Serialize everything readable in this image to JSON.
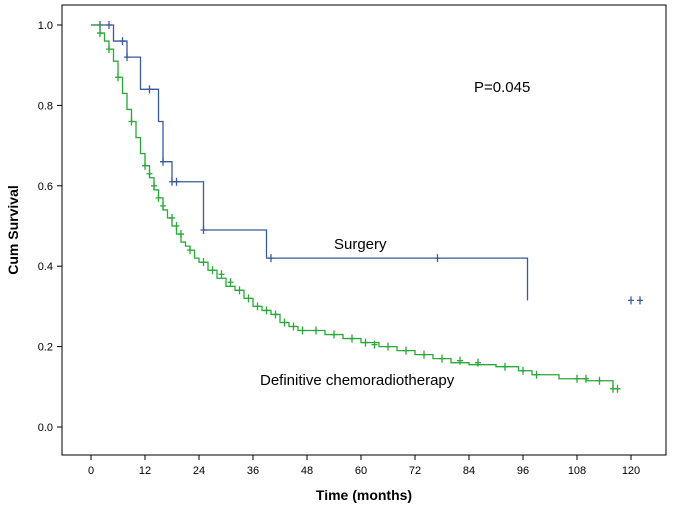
{
  "chart_data": {
    "type": "line",
    "subtype": "kaplan-meier",
    "title": "",
    "xlabel": "Time (months)",
    "ylabel": "Cum Survival",
    "xlim": [
      -2,
      124
    ],
    "ylim": [
      -0.05,
      1.05
    ],
    "xticks": [
      0,
      12,
      24,
      36,
      48,
      60,
      72,
      84,
      96,
      108,
      120
    ],
    "yticks": [
      0.0,
      0.2,
      0.4,
      0.6,
      0.8,
      1.0
    ],
    "ytick_labels": [
      "0.0",
      "0.2",
      "0.4",
      "0.6",
      "0.8",
      "1.0"
    ],
    "annotations": [
      {
        "text": "P=0.045",
        "x": 85,
        "y": 0.85
      },
      {
        "text": "Surgery",
        "x": 55,
        "y": 0.46
      },
      {
        "text": "Definitive chemoradiotherapy",
        "x": 62,
        "y": 0.115
      }
    ],
    "series": [
      {
        "name": "Surgery",
        "color": "#3a5a9a",
        "x": [
          0,
          5,
          8,
          11,
          15,
          16,
          18,
          25,
          39,
          97,
          97
        ],
        "y": [
          1.0,
          0.96,
          0.92,
          0.84,
          0.76,
          0.66,
          0.61,
          0.49,
          0.42,
          0.42,
          0.315
        ],
        "censored": [
          [
            2,
            1.0
          ],
          [
            4,
            1.0
          ],
          [
            7,
            0.96
          ],
          [
            8,
            0.92
          ],
          [
            13,
            0.84
          ],
          [
            16,
            0.66
          ],
          [
            18,
            0.61
          ],
          [
            19,
            0.61
          ],
          [
            25,
            0.49
          ],
          [
            40,
            0.42
          ],
          [
            77,
            0.42
          ],
          [
            120,
            0.315
          ],
          [
            122,
            0.315
          ]
        ]
      },
      {
        "name": "Definitive chemoradiotherapy",
        "color": "#2aa83a",
        "x": [
          0,
          2,
          3,
          4,
          5,
          6,
          7,
          8,
          9,
          10,
          11,
          12,
          13,
          14,
          15,
          16,
          17,
          18,
          19,
          20,
          21,
          22,
          23,
          24,
          26,
          28,
          30,
          32,
          34,
          36,
          38,
          40,
          42,
          44,
          46,
          48,
          52,
          56,
          60,
          64,
          68,
          72,
          76,
          80,
          84,
          90,
          95,
          98,
          104,
          110,
          116
        ],
        "y": [
          1.0,
          0.98,
          0.96,
          0.94,
          0.91,
          0.87,
          0.83,
          0.79,
          0.76,
          0.72,
          0.68,
          0.65,
          0.62,
          0.59,
          0.57,
          0.54,
          0.52,
          0.5,
          0.48,
          0.46,
          0.45,
          0.44,
          0.42,
          0.41,
          0.39,
          0.37,
          0.35,
          0.34,
          0.32,
          0.3,
          0.29,
          0.28,
          0.26,
          0.25,
          0.24,
          0.24,
          0.23,
          0.22,
          0.21,
          0.2,
          0.19,
          0.18,
          0.17,
          0.16,
          0.155,
          0.15,
          0.14,
          0.13,
          0.12,
          0.115,
          0.095
        ],
        "censored": [
          [
            2,
            0.98
          ],
          [
            4,
            0.94
          ],
          [
            6,
            0.87
          ],
          [
            9,
            0.76
          ],
          [
            12,
            0.65
          ],
          [
            13,
            0.63
          ],
          [
            14,
            0.6
          ],
          [
            15,
            0.57
          ],
          [
            16,
            0.55
          ],
          [
            18,
            0.52
          ],
          [
            19,
            0.5
          ],
          [
            20,
            0.48
          ],
          [
            22,
            0.44
          ],
          [
            25,
            0.41
          ],
          [
            27,
            0.39
          ],
          [
            29,
            0.38
          ],
          [
            31,
            0.36
          ],
          [
            33,
            0.34
          ],
          [
            35,
            0.32
          ],
          [
            37,
            0.3
          ],
          [
            39,
            0.29
          ],
          [
            41,
            0.28
          ],
          [
            43,
            0.26
          ],
          [
            45,
            0.25
          ],
          [
            47,
            0.24
          ],
          [
            50,
            0.24
          ],
          [
            54,
            0.23
          ],
          [
            58,
            0.22
          ],
          [
            61,
            0.21
          ],
          [
            63,
            0.205
          ],
          [
            66,
            0.2
          ],
          [
            70,
            0.19
          ],
          [
            74,
            0.18
          ],
          [
            78,
            0.17
          ],
          [
            82,
            0.165
          ],
          [
            86,
            0.16
          ],
          [
            92,
            0.15
          ],
          [
            96,
            0.14
          ],
          [
            99,
            0.13
          ],
          [
            108,
            0.12
          ],
          [
            110,
            0.12
          ],
          [
            113,
            0.115
          ],
          [
            116,
            0.095
          ],
          [
            117,
            0.095
          ]
        ]
      }
    ]
  }
}
